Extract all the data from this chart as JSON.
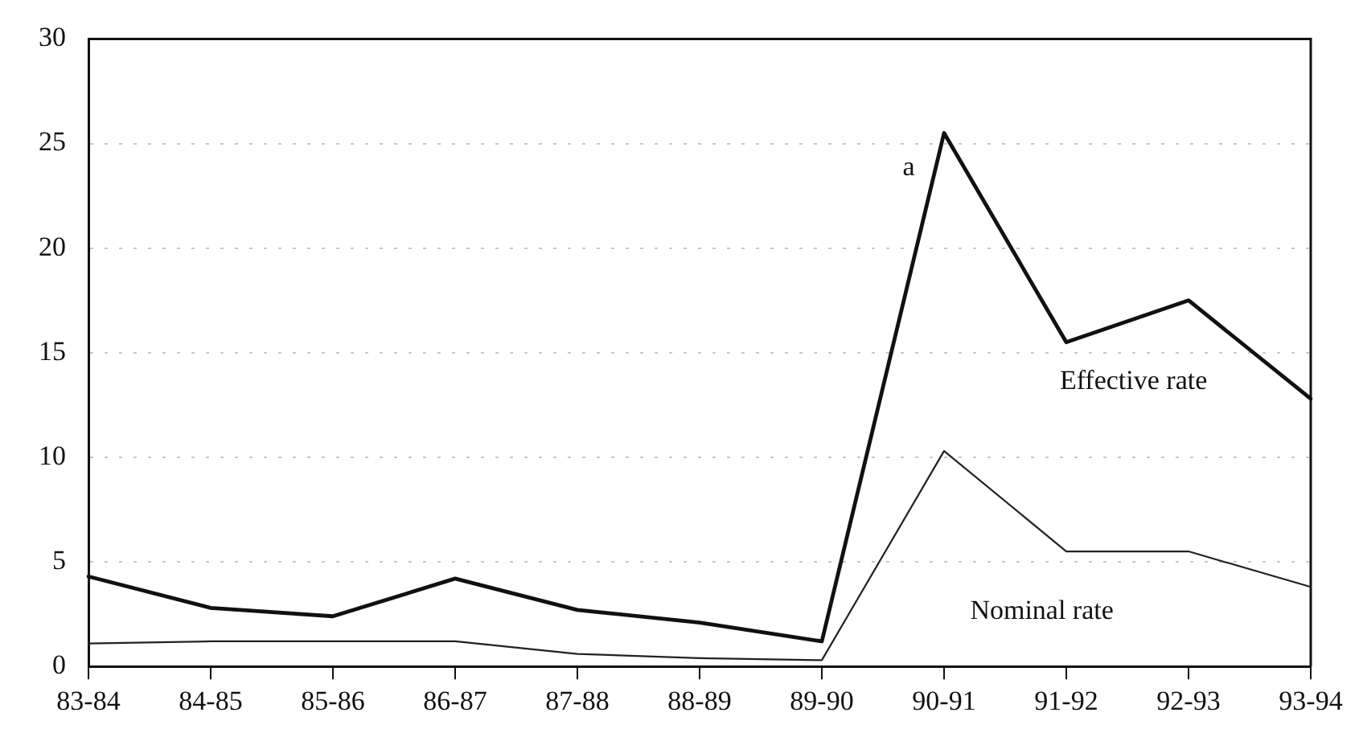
{
  "chart_data": {
    "type": "line",
    "categories": [
      "83-84",
      "84-85",
      "85-86",
      "86-87",
      "87-88",
      "88-89",
      "89-90",
      "90-91",
      "91-92",
      "92-93",
      "93-94"
    ],
    "series": [
      {
        "name": "Effective rate",
        "color": "#111111",
        "values": [
          4.3,
          2.8,
          2.4,
          4.2,
          2.7,
          2.1,
          1.2,
          25.5,
          15.5,
          17.5,
          12.8
        ]
      },
      {
        "name": "Nominal rate",
        "color": "#222222",
        "values": [
          1.1,
          1.2,
          1.2,
          1.2,
          0.6,
          0.4,
          0.3,
          10.3,
          5.5,
          5.5,
          3.8
        ]
      }
    ],
    "ylim": [
      0,
      30
    ],
    "yticks": [
      0,
      5,
      10,
      15,
      20,
      25,
      30
    ],
    "grid": "y",
    "legend": false,
    "marker": "none",
    "line_style": "solid",
    "annotations": [
      {
        "text": "a",
        "x": "90-91",
        "y": 25.5
      }
    ]
  }
}
